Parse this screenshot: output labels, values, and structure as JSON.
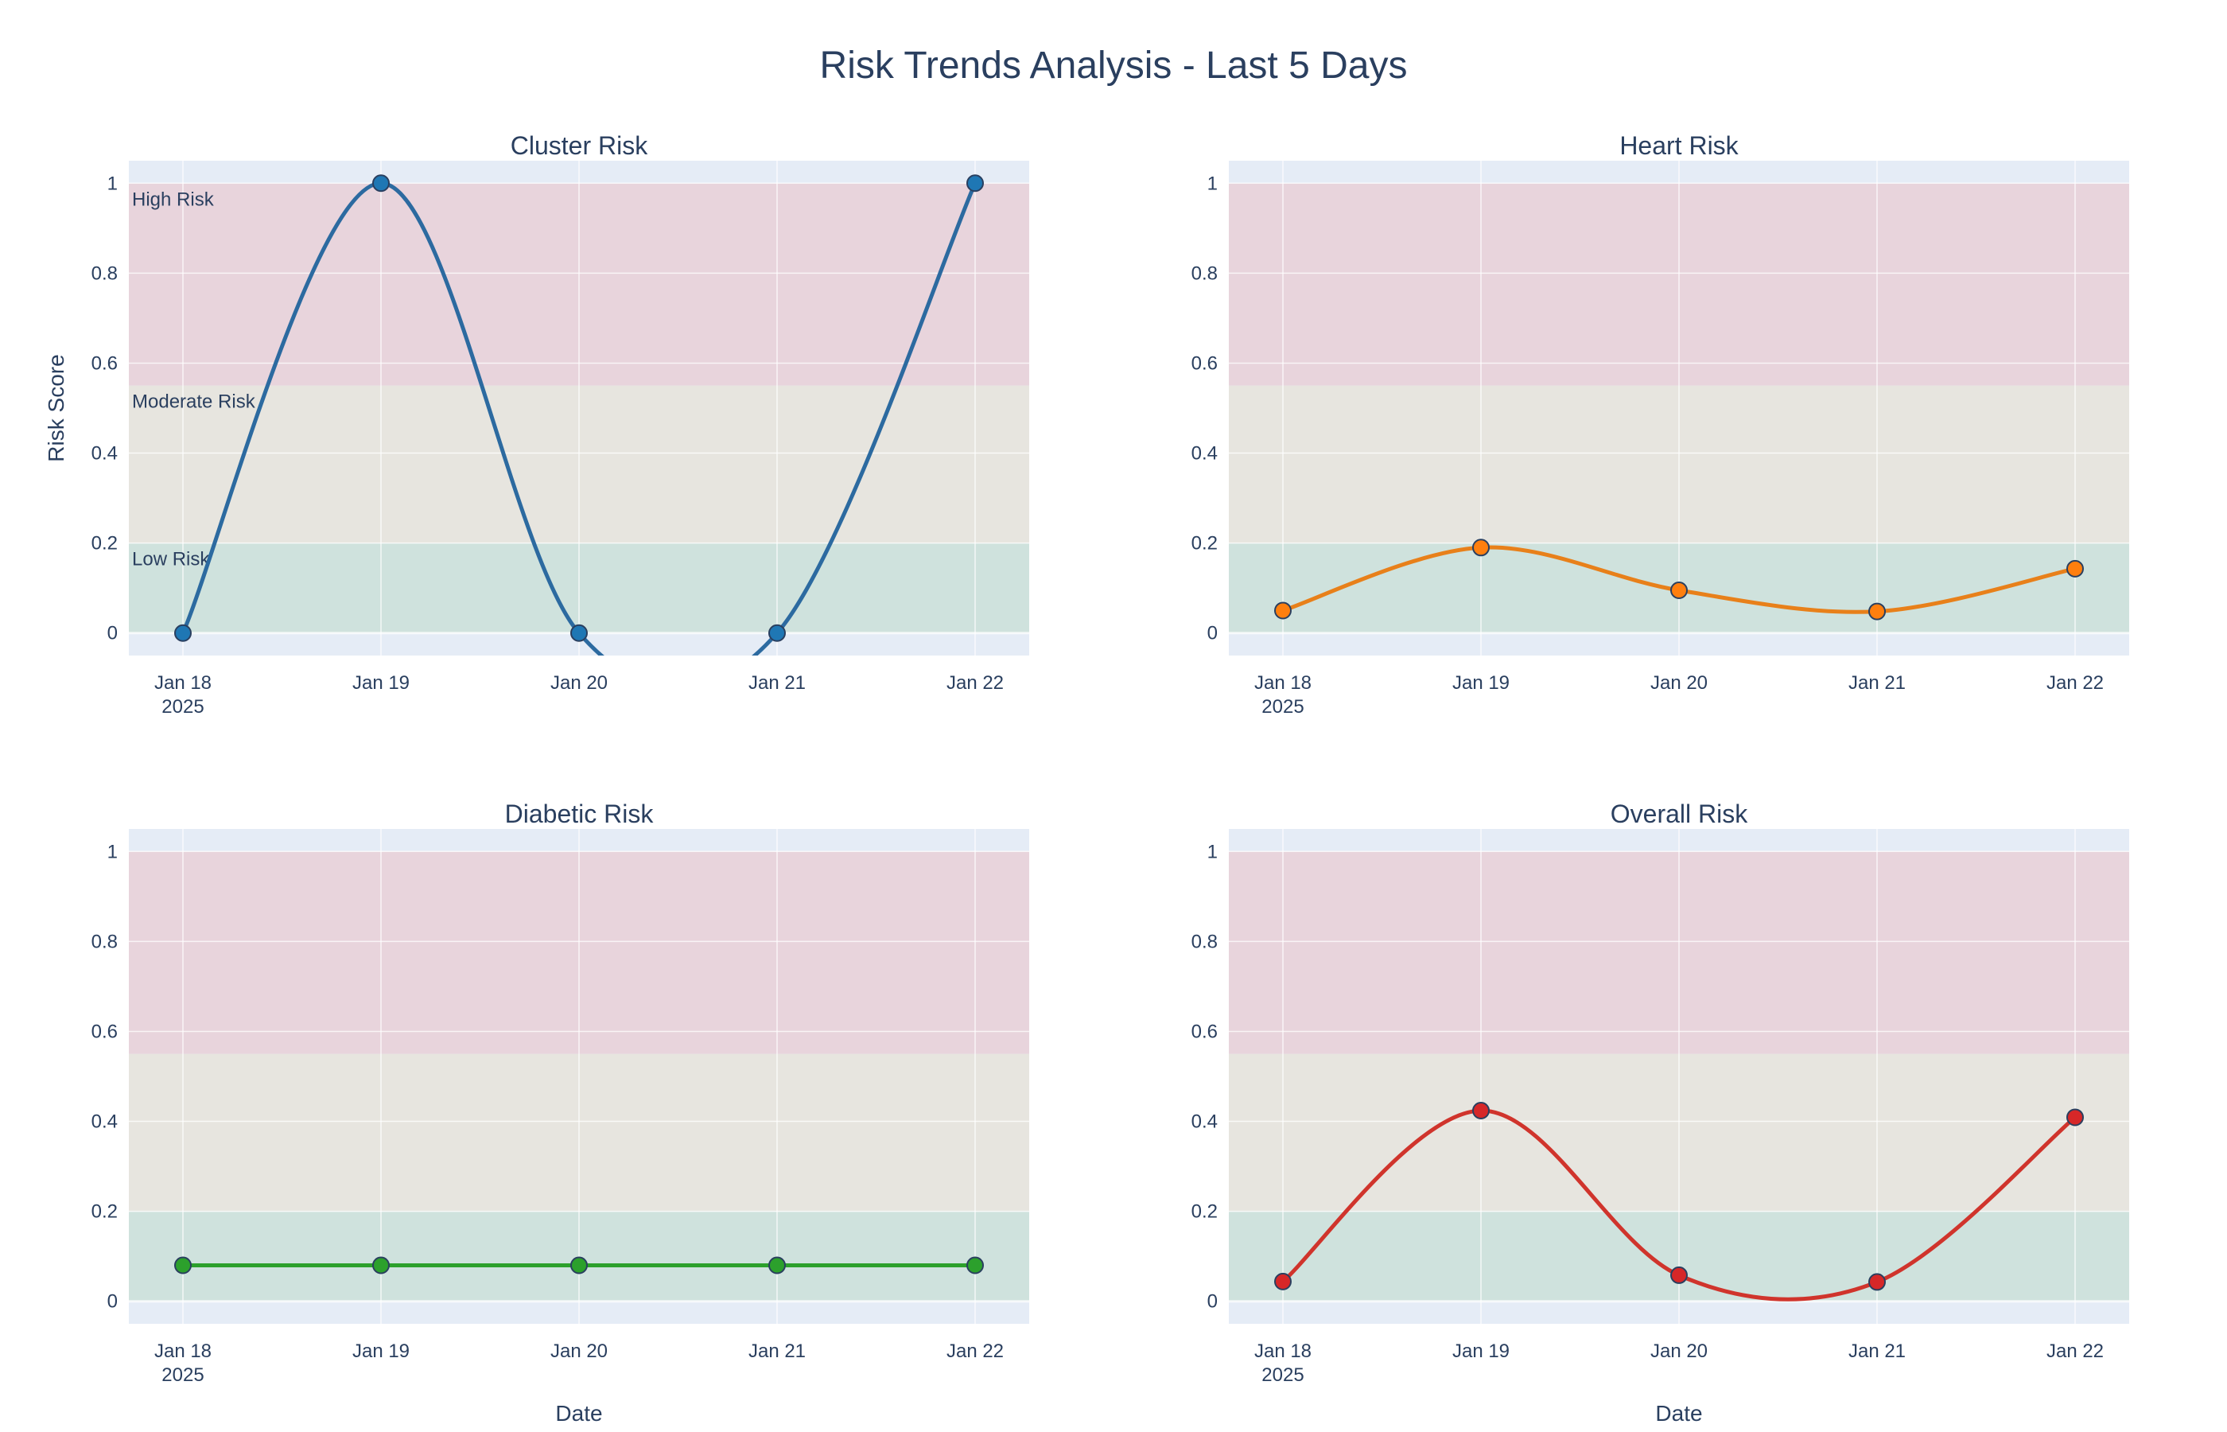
{
  "title": "Risk Trends Analysis - Last 5 Days",
  "colors": {
    "plot_bg": "#e5ecf6",
    "grid": "#ffffff",
    "text": "#2a3f5f",
    "high_band": "#e8d4dc",
    "moderate_band": "#e7e5df",
    "low_band": "#cfe2dd"
  },
  "bands": [
    {
      "name": "High Risk",
      "from": 0.55,
      "to": 1.0,
      "color": "#e8d4dc"
    },
    {
      "name": "Moderate Risk",
      "from": 0.2,
      "to": 0.55,
      "color": "#e7e5df"
    },
    {
      "name": "Low Risk",
      "from": 0.0,
      "to": 0.2,
      "color": "#cfe2dd"
    }
  ],
  "chart_data": [
    {
      "type": "line",
      "title": "Cluster Risk",
      "x": [
        "2025-01-18",
        "2025-01-19",
        "2025-01-20",
        "2025-01-21",
        "2025-01-22"
      ],
      "series": [
        {
          "values": [
            0,
            1,
            0,
            0,
            1
          ],
          "color": "#1f77b4",
          "line_color": "#2c6aa0"
        }
      ],
      "xlabel": "",
      "ylabel": "Risk Score",
      "ylim": [
        -0.05,
        1.05
      ],
      "yticks": [
        "0",
        "0.2",
        "0.4",
        "0.6",
        "0.8",
        "1"
      ],
      "xticks": [
        "Jan 18",
        "Jan 19",
        "Jan 20",
        "Jan 21",
        "Jan 22"
      ],
      "xtick_year": "2025",
      "show_band_labels": true,
      "grid": true
    },
    {
      "type": "line",
      "title": "Heart Risk",
      "x": [
        "2025-01-18",
        "2025-01-19",
        "2025-01-20",
        "2025-01-21",
        "2025-01-22"
      ],
      "series": [
        {
          "values": [
            0.05,
            0.19,
            0.095,
            0.048,
            0.143
          ],
          "color": "#ff7f0e",
          "line_color": "#e8801a"
        }
      ],
      "xlabel": "",
      "ylabel": "",
      "ylim": [
        -0.05,
        1.05
      ],
      "yticks": [
        "0",
        "0.2",
        "0.4",
        "0.6",
        "0.8",
        "1"
      ],
      "xticks": [
        "Jan 18",
        "Jan 19",
        "Jan 20",
        "Jan 21",
        "Jan 22"
      ],
      "xtick_year": "2025",
      "show_band_labels": false,
      "grid": true
    },
    {
      "type": "line",
      "title": "Diabetic Risk",
      "x": [
        "2025-01-18",
        "2025-01-19",
        "2025-01-20",
        "2025-01-21",
        "2025-01-22"
      ],
      "series": [
        {
          "values": [
            0.08,
            0.08,
            0.08,
            0.08,
            0.08
          ],
          "color": "#2ca02c",
          "line_color": "#2ca02c"
        }
      ],
      "xlabel": "Date",
      "ylabel": "",
      "ylim": [
        -0.05,
        1.05
      ],
      "yticks": [
        "0",
        "0.2",
        "0.4",
        "0.6",
        "0.8",
        "1"
      ],
      "xticks": [
        "Jan 18",
        "Jan 19",
        "Jan 20",
        "Jan 21",
        "Jan 22"
      ],
      "xtick_year": "2025",
      "show_band_labels": false,
      "grid": true
    },
    {
      "type": "line",
      "title": "Overall Risk",
      "x": [
        "2025-01-18",
        "2025-01-19",
        "2025-01-20",
        "2025-01-21",
        "2025-01-22"
      ],
      "series": [
        {
          "values": [
            0.044,
            0.424,
            0.058,
            0.043,
            0.409
          ],
          "color": "#d62728",
          "line_color": "#d0342c"
        }
      ],
      "xlabel": "Date",
      "ylabel": "",
      "ylim": [
        -0.05,
        1.05
      ],
      "yticks": [
        "0",
        "0.2",
        "0.4",
        "0.6",
        "0.8",
        "1"
      ],
      "xticks": [
        "Jan 18",
        "Jan 19",
        "Jan 20",
        "Jan 21",
        "Jan 22"
      ],
      "xtick_year": "2025",
      "show_band_labels": false,
      "grid": true
    }
  ]
}
